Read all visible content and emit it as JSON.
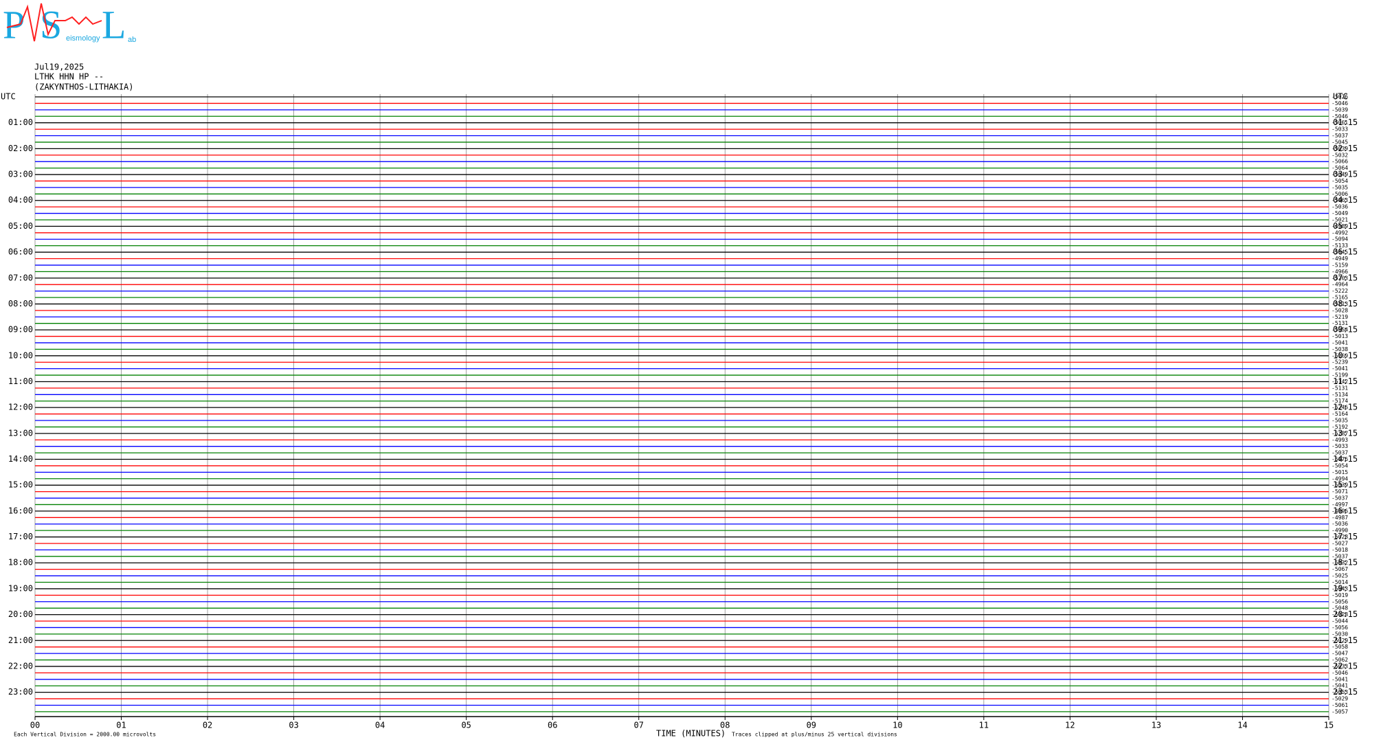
{
  "chart_data": {
    "type": "helicorder",
    "logo": {
      "letters": [
        "P",
        "S",
        "L"
      ],
      "subtitle": "eismology",
      "tail": "ab"
    },
    "header": [
      "Jul19,2025",
      "LTHK HHN HP --",
      "(ZAKYNTHOS-LITHAKIA)"
    ],
    "left_labels": [
      "UTC",
      "01:00",
      "02:00",
      "03:00",
      "04:00",
      "05:00",
      "06:00",
      "07:00",
      "08:00",
      "09:00",
      "10:00",
      "11:00",
      "12:00",
      "13:00",
      "14:00",
      "15:00",
      "16:00",
      "17:00",
      "18:00",
      "19:00",
      "20:00",
      "21:00",
      "22:00",
      "23:00"
    ],
    "right_labels": [
      "UTC",
      "01:15",
      "02:15",
      "03:15",
      "04:15",
      "05:15",
      "06:15",
      "07:15",
      "08:15",
      "09:15",
      "10:15",
      "11:15",
      "12:15",
      "13:15",
      "14:15",
      "15:15",
      "16:15",
      "17:15",
      "18:15",
      "19:15",
      "20:15",
      "21:15",
      "22:15",
      "23:15"
    ],
    "trace_offsets": [
      -5026,
      -5046,
      -5039,
      -5046,
      -5061,
      -5033,
      -5037,
      -5045,
      -5039,
      -5032,
      -5066,
      -5064,
      -5049,
      -5054,
      -5035,
      -5006,
      -5063,
      -5036,
      -5049,
      -5021,
      -4989,
      -4992,
      -5094,
      -5133,
      -5045,
      -4949,
      -5159,
      -4966,
      -5203,
      -4964,
      -5222,
      -5165,
      -5213,
      -5028,
      -5219,
      -5131,
      -5054,
      -5013,
      -5041,
      -5038,
      -5169,
      -5239,
      -5041,
      -5199,
      -5142,
      -5131,
      -5134,
      -5174,
      -5246,
      -5164,
      -5035,
      -5192,
      -5287,
      -4993,
      -5033,
      -5037,
      -5076,
      -5054,
      -5015,
      -4994,
      -5039,
      -5071,
      -5037,
      -4997,
      -4996,
      -4987,
      -5036,
      -4990,
      -5028,
      -5027,
      -5018,
      -5037,
      -5032,
      -5067,
      -5025,
      -5014,
      -5043,
      -5019,
      -5056,
      -5048,
      -5028,
      -5044,
      -5056,
      -5030,
      -5029,
      -5058,
      -5047,
      -5062,
      -5033,
      -5046,
      -5041,
      -5041,
      -5053,
      -5029,
      -5061,
      -5057
    ],
    "colors": [
      "#000000",
      "#ff0000",
      "#0000ff",
      "#008000"
    ],
    "xlim": [
      0,
      15
    ],
    "xticks": [
      {
        "value": 0,
        "label": "00"
      },
      {
        "value": 1,
        "label": "01"
      },
      {
        "value": 2,
        "label": "02"
      },
      {
        "value": 3,
        "label": "03"
      },
      {
        "value": 4,
        "label": "04"
      },
      {
        "value": 5,
        "label": "05"
      },
      {
        "value": 6,
        "label": "06"
      },
      {
        "value": 7,
        "label": "07"
      },
      {
        "value": 8,
        "label": "08"
      },
      {
        "value": 9,
        "label": "09"
      },
      {
        "value": 10,
        "label": "10"
      },
      {
        "value": 11,
        "label": "11"
      },
      {
        "value": 12,
        "label": "12"
      },
      {
        "value": 13,
        "label": "13"
      },
      {
        "value": 14,
        "label": "14"
      },
      {
        "value": 15,
        "label": "15"
      }
    ],
    "xlabel": "TIME (MINUTES)",
    "footer_left": "Each Vertical Division = 2000.00 microvolts",
    "footer_right": "Traces clipped at plus/minus 25 vertical divisions"
  }
}
